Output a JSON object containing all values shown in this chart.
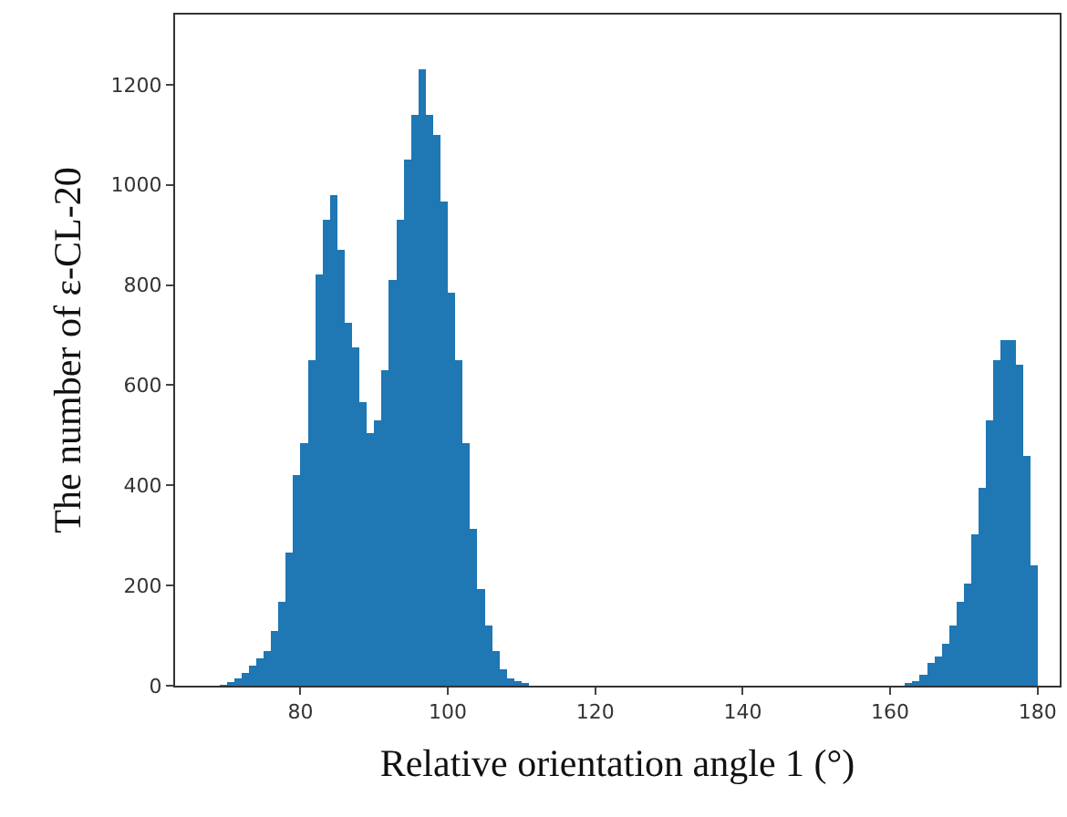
{
  "chart_data": {
    "type": "histogram",
    "xlabel": "Relative orientation angle 1 (°)",
    "ylabel": "The number of ε-CL-20",
    "bins": [
      69,
      70,
      71,
      72,
      73,
      74,
      75,
      76,
      77,
      78,
      79,
      80,
      81,
      82,
      83,
      84,
      85,
      86,
      87,
      88,
      89,
      90,
      91,
      92,
      93,
      94,
      95,
      96,
      97,
      98,
      99,
      100,
      101,
      102,
      103,
      104,
      105,
      106,
      107,
      108,
      109,
      110,
      111,
      112,
      113,
      114,
      115,
      116,
      117,
      118,
      119,
      120,
      121,
      122,
      123,
      124,
      125,
      126,
      127,
      128,
      129,
      130,
      131,
      132,
      133,
      134,
      135,
      136,
      137,
      138,
      139,
      140,
      141,
      142,
      143,
      144,
      145,
      146,
      147,
      148,
      149,
      150,
      151,
      152,
      153,
      154,
      155,
      156,
      157,
      158,
      159,
      160,
      161,
      162,
      163,
      164,
      165,
      166,
      167,
      168,
      169,
      170,
      171,
      172,
      173,
      174,
      175,
      176,
      177,
      178,
      179,
      180
    ],
    "values": [
      2,
      8,
      15,
      25,
      40,
      55,
      70,
      110,
      167,
      265,
      420,
      484,
      650,
      822,
      930,
      980,
      870,
      725,
      676,
      567,
      505,
      530,
      630,
      810,
      930,
      1050,
      1140,
      1230,
      1140,
      1100,
      967,
      785,
      650,
      484,
      313,
      193,
      120,
      70,
      33,
      15,
      10,
      5,
      0,
      0,
      0,
      0,
      0,
      0,
      0,
      0,
      0,
      0,
      0,
      0,
      0,
      0,
      0,
      0,
      0,
      0,
      0,
      0,
      0,
      0,
      0,
      0,
      0,
      0,
      0,
      0,
      0,
      0,
      0,
      0,
      0,
      0,
      0,
      0,
      0,
      0,
      0,
      0,
      0,
      0,
      0,
      0,
      0,
      0,
      0,
      0,
      0,
      0,
      0,
      5,
      10,
      22,
      45,
      58,
      84,
      120,
      167,
      204,
      302,
      396,
      530,
      650,
      690,
      690,
      640,
      458,
      240
    ],
    "color": "#1f77b4",
    "xlim": [
      63,
      183
    ],
    "xticks": [
      80,
      100,
      120,
      140,
      160,
      180
    ],
    "ylim": [
      0,
      1340
    ],
    "yticks": [
      0,
      200,
      400,
      600,
      800,
      1000,
      1200
    ],
    "grid": false
  }
}
